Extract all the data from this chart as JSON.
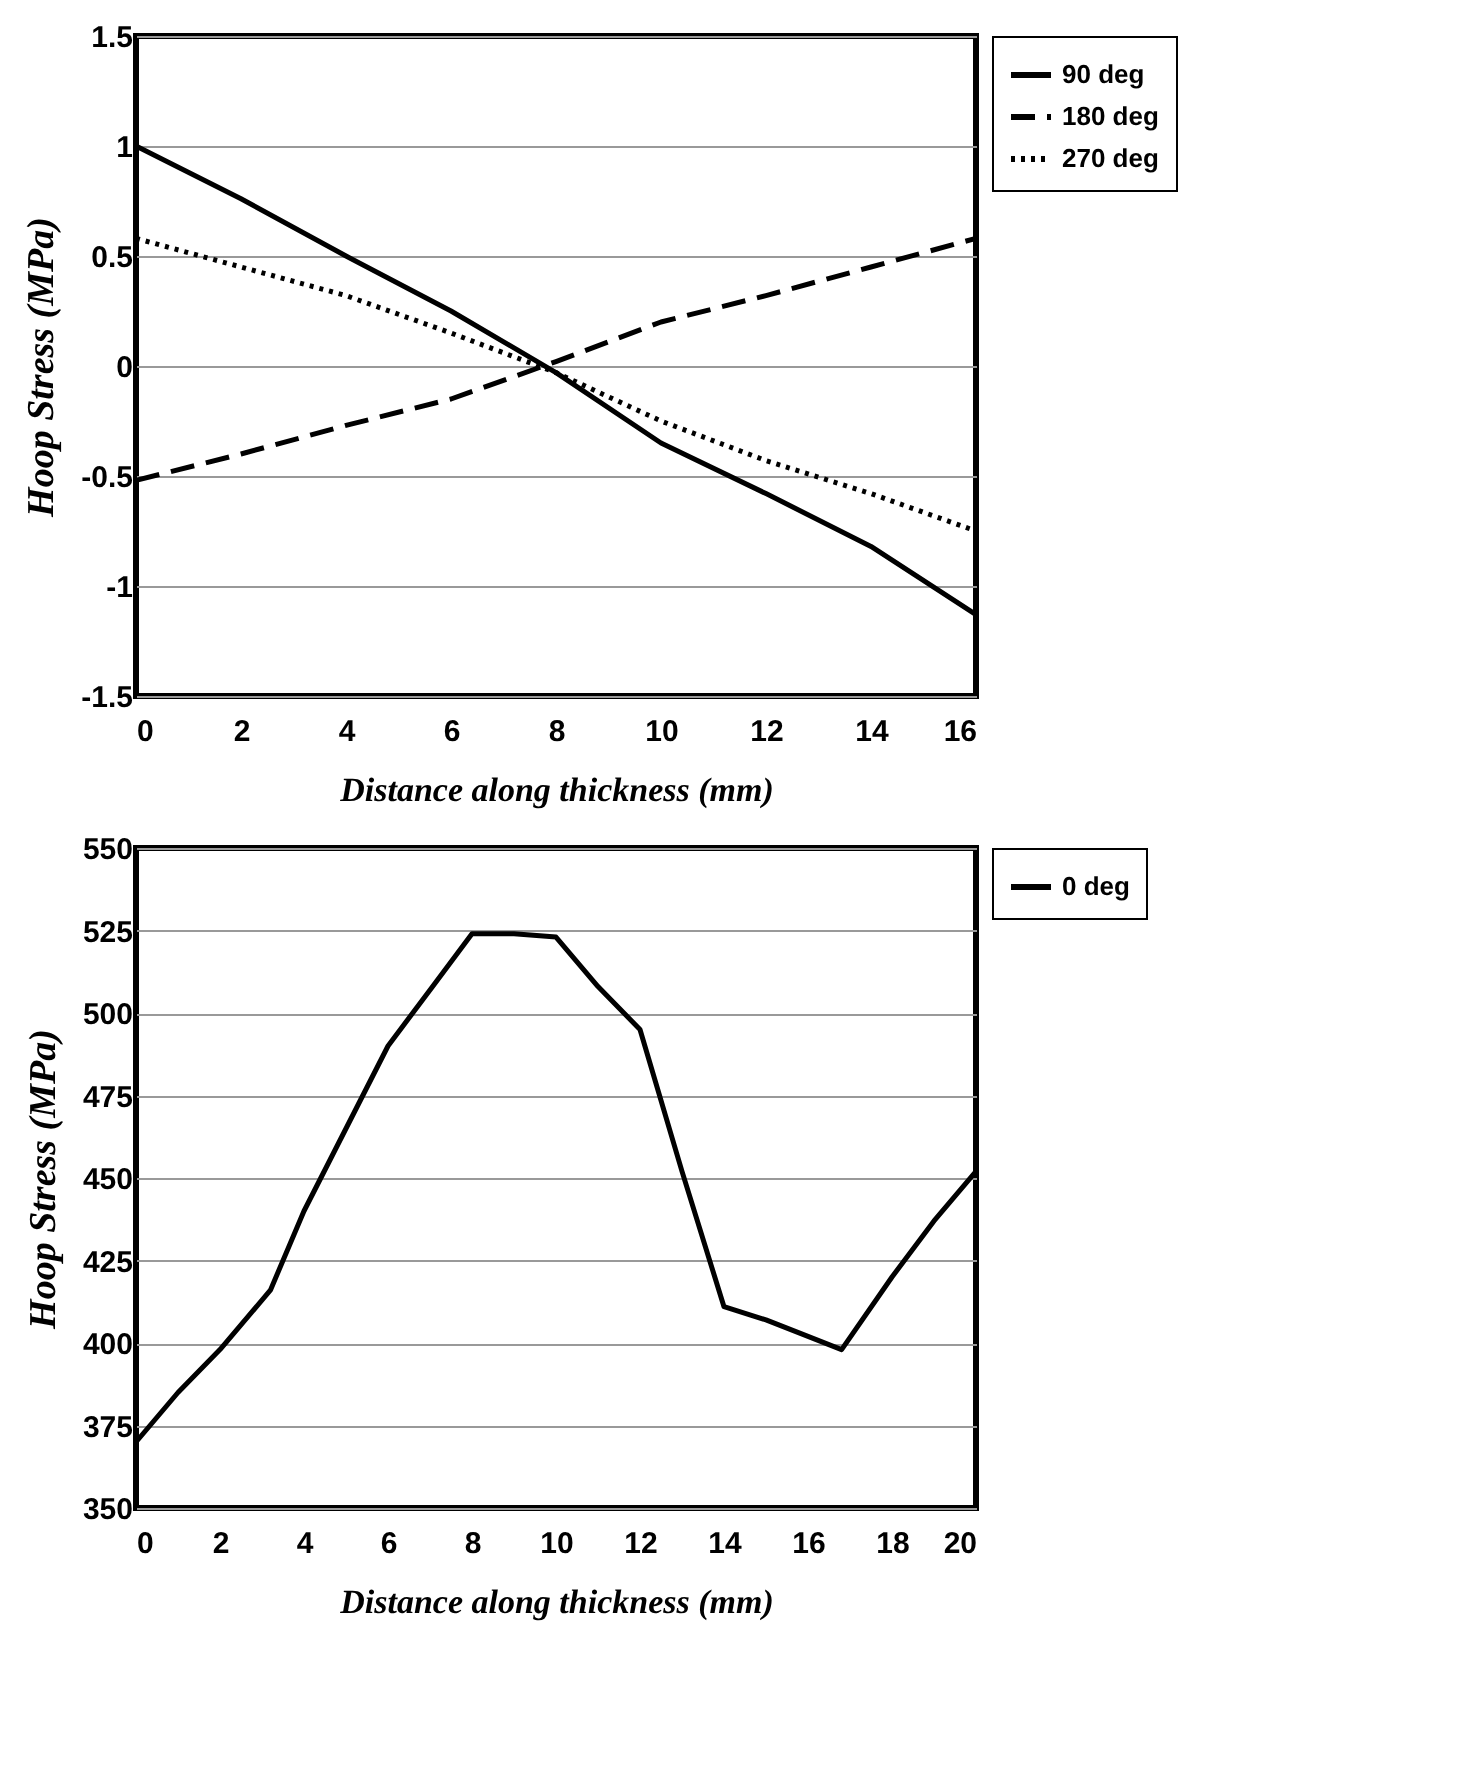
{
  "chart_data": [
    {
      "type": "line",
      "xlabel": "Distance along thickness (mm)",
      "ylabel": "Hoop Stress (MPa)",
      "xlim": [
        0,
        16
      ],
      "xticks": [
        0,
        2,
        4,
        6,
        8,
        10,
        12,
        14,
        16
      ],
      "ylim": [
        -1.5,
        1.5
      ],
      "yticks": [
        -1.5,
        -1,
        -0.5,
        0,
        0.5,
        1,
        1.5
      ],
      "grid": "y",
      "legend": "right",
      "x": [
        0,
        2,
        4,
        6,
        8,
        10,
        12,
        14,
        16
      ],
      "series": [
        {
          "name": "90 deg",
          "color": "#000000",
          "line_style": "solid",
          "values": [
            1.0,
            0.76,
            0.5,
            0.25,
            -0.03,
            -0.35,
            -0.58,
            -0.82,
            -1.13
          ]
        },
        {
          "name": "180 deg",
          "color": "#000000",
          "line_style": "dashed",
          "values": [
            -0.52,
            -0.4,
            -0.27,
            -0.15,
            0.02,
            0.2,
            0.32,
            0.45,
            0.58
          ]
        },
        {
          "name": "270 deg",
          "color": "#000000",
          "line_style": "dotted",
          "values": [
            0.58,
            0.45,
            0.32,
            0.15,
            -0.03,
            -0.25,
            -0.43,
            -0.58,
            -0.75
          ]
        }
      ]
    },
    {
      "type": "line",
      "xlabel": "Distance along thickness (mm)",
      "ylabel": "Hoop Stress (MPa)",
      "xlim": [
        0,
        20
      ],
      "xticks": [
        0,
        2,
        4,
        6,
        8,
        10,
        12,
        14,
        16,
        18,
        20
      ],
      "ylim": [
        350,
        550
      ],
      "yticks": [
        350,
        375,
        400,
        425,
        450,
        475,
        500,
        525,
        550
      ],
      "grid": "y",
      "legend": "right",
      "x": [
        0,
        1,
        2,
        3.2,
        4,
        5,
        6,
        7,
        8,
        9,
        10,
        11,
        12,
        13,
        14,
        15,
        16,
        16.8,
        18,
        19,
        20
      ],
      "series": [
        {
          "name": "0 deg",
          "color": "#000000",
          "line_style": "solid",
          "values": [
            370,
            385,
            398,
            416,
            440,
            465,
            490,
            507,
            524,
            524,
            523,
            508,
            495,
            452,
            411,
            407,
            402,
            398,
            420,
            437,
            452
          ]
        }
      ]
    }
  ]
}
